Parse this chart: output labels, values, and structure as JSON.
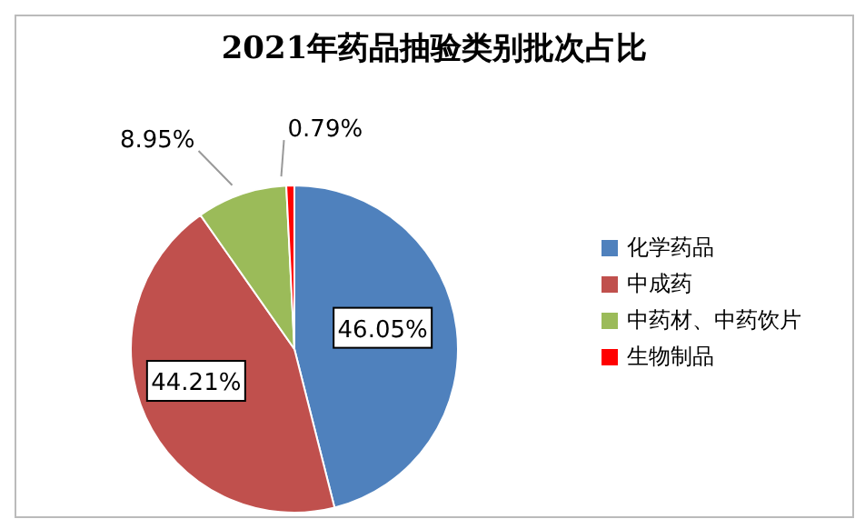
{
  "chart_data": {
    "type": "pie",
    "title": "2021年药品抽验类别批次占比",
    "categories": [
      "化学药品",
      "中成药",
      "中药材、中药饮片",
      "生物制品"
    ],
    "values": [
      46.05,
      44.21,
      8.95,
      0.79
    ],
    "value_labels": [
      "46.05%",
      "44.21%",
      "8.95%",
      "0.79%"
    ],
    "colors": [
      "#4f81bd",
      "#c0504d",
      "#9bbb59",
      "#ff0000"
    ],
    "legend": "right"
  }
}
